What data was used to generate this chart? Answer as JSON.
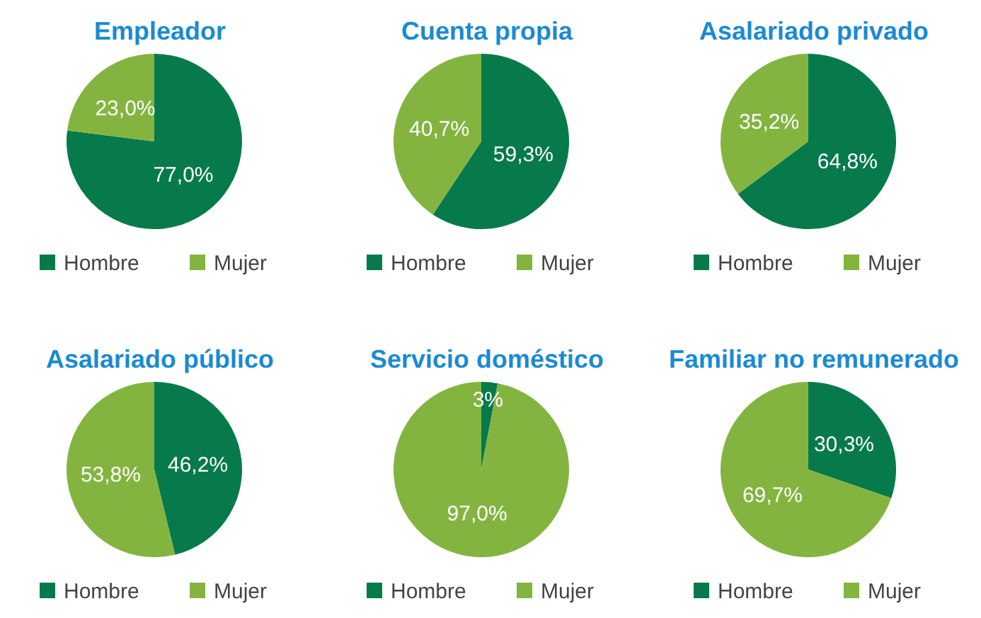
{
  "chart_data": [
    {
      "type": "pie",
      "title": "Empleador",
      "categories": [
        "Hombre",
        "Mujer"
      ],
      "values": [
        77.0,
        23.0
      ],
      "colors": [
        "#067a4b",
        "#84b440"
      ],
      "value_labels": [
        "77,0%",
        "23,0%"
      ],
      "legend": "bottom"
    },
    {
      "type": "pie",
      "title": "Cuenta propia",
      "categories": [
        "Hombre",
        "Mujer"
      ],
      "values": [
        59.3,
        40.7
      ],
      "colors": [
        "#067a4b",
        "#84b440"
      ],
      "value_labels": [
        "59,3%",
        "40,7%"
      ],
      "legend": "bottom"
    },
    {
      "type": "pie",
      "title": "Asalariado privado",
      "categories": [
        "Hombre",
        "Mujer"
      ],
      "values": [
        64.8,
        35.2
      ],
      "colors": [
        "#067a4b",
        "#84b440"
      ],
      "value_labels": [
        "64,8%",
        "35,2%"
      ],
      "legend": "bottom"
    },
    {
      "type": "pie",
      "title": "Asalariado público",
      "categories": [
        "Hombre",
        "Mujer"
      ],
      "values": [
        46.2,
        53.8
      ],
      "colors": [
        "#067a4b",
        "#84b440"
      ],
      "value_labels": [
        "46,2%",
        "53,8%"
      ],
      "legend": "bottom"
    },
    {
      "type": "pie",
      "title": "Servicio doméstico",
      "categories": [
        "Hombre",
        "Mujer"
      ],
      "values": [
        3,
        97.0
      ],
      "colors": [
        "#067a4b",
        "#84b440"
      ],
      "value_labels": [
        "3%",
        "97,0%"
      ],
      "legend": "bottom"
    },
    {
      "type": "pie",
      "title": "Familiar no remunerado",
      "categories": [
        "Hombre",
        "Mujer"
      ],
      "values": [
        30.3,
        69.7
      ],
      "colors": [
        "#067a4b",
        "#84b440"
      ],
      "value_labels": [
        "30,3%",
        "69,7%"
      ],
      "legend": "bottom"
    }
  ]
}
